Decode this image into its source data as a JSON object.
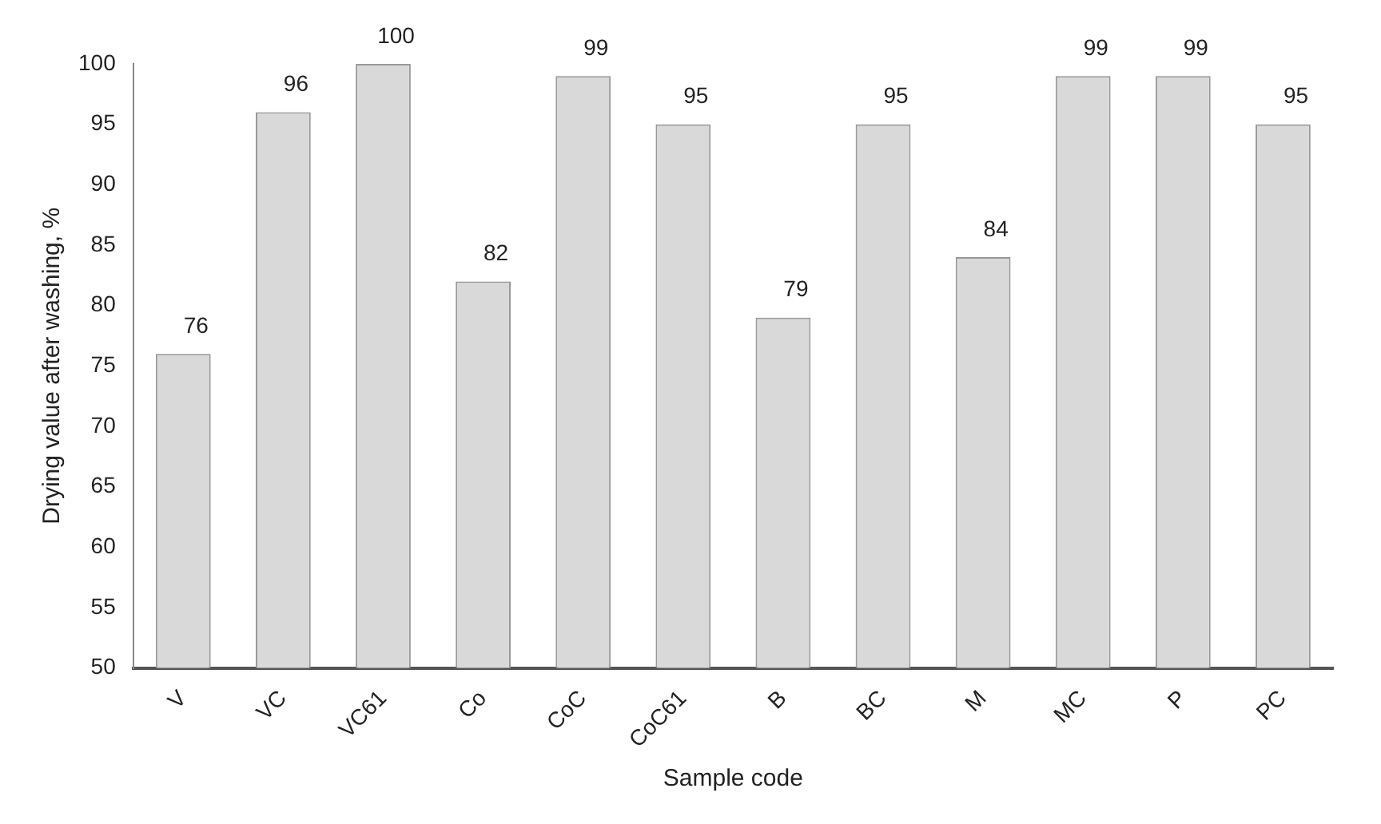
{
  "chart_data": {
    "type": "bar",
    "xlabel": "Sample code",
    "ylabel": "Drying value after washing, %",
    "categories": [
      "V",
      "VC",
      "VC61",
      "Co",
      "CoC",
      "CoC61",
      "B",
      "BC",
      "M",
      "MC",
      "P",
      "PC"
    ],
    "values": [
      76,
      96,
      100,
      82,
      99,
      95,
      79,
      95,
      84,
      99,
      99,
      95
    ],
    "color": "#d9d9d9",
    "ylim": [
      50,
      100
    ],
    "yticks": [
      50,
      55,
      60,
      65,
      70,
      75,
      80,
      85,
      90,
      95,
      100
    ],
    "grid": false,
    "data_labels": true
  }
}
